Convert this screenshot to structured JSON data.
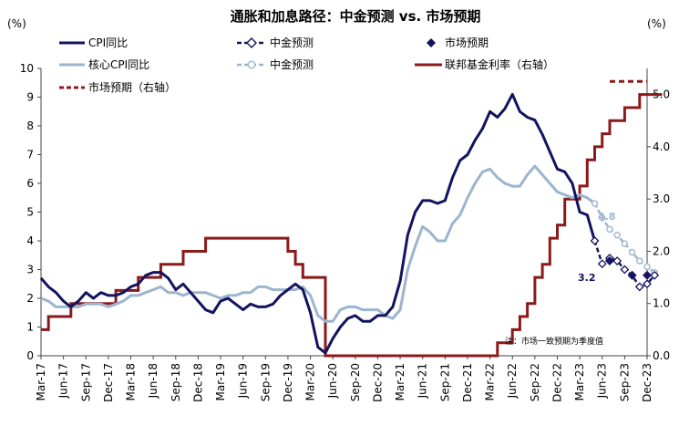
{
  "chart_data": {
    "type": "line",
    "title": "通胀和加息路径：中金预测 vs. 市场预期",
    "ylabel_left": "(%)",
    "ylabel_right": "(%)",
    "left_axis": {
      "ylim": [
        0,
        10
      ],
      "ticks": [
        "0",
        "1",
        "2",
        "3",
        "4",
        "5",
        "6",
        "7",
        "8",
        "9",
        "10"
      ]
    },
    "right_axis": {
      "ylim": [
        0.0,
        5.5
      ],
      "ticks": [
        "0.0",
        "1.0",
        "2.0",
        "3.0",
        "4.0",
        "5.0"
      ]
    },
    "x_range": [
      "2017-03",
      "2023-12"
    ],
    "x_ticks": [
      "Mar-17",
      "Jun-17",
      "Sep-17",
      "Dec-17",
      "Mar-18",
      "Jun-18",
      "Sep-18",
      "Dec-18",
      "Mar-19",
      "Jun-19",
      "Sep-19",
      "Dec-19",
      "Mar-20",
      "Jun-20",
      "Sep-20",
      "Dec-20",
      "Mar-21",
      "Jun-21",
      "Sep-21",
      "Dec-21",
      "Mar-22",
      "Jun-22",
      "Sep-22",
      "Dec-22",
      "Mar-23",
      "Jun-23",
      "Sep-23",
      "Dec-23"
    ],
    "grid": false,
    "colors": {
      "cpi": "#13135f",
      "core": "#9cb5cf",
      "fed": "#8b1a1a",
      "market_note": "#000000"
    },
    "legend": [
      {
        "label": "CPI同比",
        "style": "solid-dark-blue"
      },
      {
        "label": "中金预测",
        "style": "dashed-dark-blue-hollow-diamond"
      },
      {
        "label": "市场预期",
        "style": "dark-blue-diamond"
      },
      {
        "label": "核心CPI同比",
        "style": "solid-light-blue"
      },
      {
        "label": "中金预测",
        "style": "dashed-light-blue-hollow-circle"
      },
      {
        "label": "联邦基金利率（右轴）",
        "style": "solid-dark-red"
      },
      {
        "label": "市场预期（右轴）",
        "style": "dashed-dark-red"
      }
    ],
    "series": [
      {
        "name": "CPI同比",
        "axis": "left",
        "x_start": "2017-03",
        "values": [
          2.7,
          2.4,
          2.2,
          1.9,
          1.7,
          1.9,
          2.2,
          2.0,
          2.2,
          2.1,
          2.1,
          2.2,
          2.4,
          2.5,
          2.8,
          2.9,
          2.9,
          2.7,
          2.3,
          2.5,
          2.2,
          1.9,
          1.6,
          1.5,
          1.9,
          2.0,
          1.8,
          1.6,
          1.8,
          1.7,
          1.7,
          1.8,
          2.1,
          2.3,
          2.5,
          2.3,
          1.5,
          0.3,
          0.1,
          0.6,
          1.0,
          1.3,
          1.4,
          1.2,
          1.2,
          1.4,
          1.4,
          1.7,
          2.6,
          4.2,
          5.0,
          5.4,
          5.4,
          5.3,
          5.4,
          6.2,
          6.8,
          7.0,
          7.5,
          7.9,
          8.5,
          8.3,
          8.6,
          9.1,
          8.5,
          8.3,
          8.2,
          7.7,
          7.1,
          6.5,
          6.4,
          6.0,
          5.0,
          4.9,
          4.0
        ]
      },
      {
        "name": "中金预测",
        "axis": "left",
        "x_start": "2023-05",
        "values": [
          4.0,
          3.2,
          3.4,
          3.3,
          3.0,
          2.8,
          2.4,
          2.5,
          2.8
        ]
      },
      {
        "name": "市场预期",
        "axis": "left",
        "points": [
          [
            "2023-07",
            3.3
          ],
          [
            "2023-10",
            2.8
          ],
          [
            "2023-12",
            2.8
          ]
        ]
      },
      {
        "name": "核心CPI同比",
        "axis": "left",
        "x_start": "2017-03",
        "values": [
          2.0,
          1.9,
          1.7,
          1.7,
          1.7,
          1.7,
          1.8,
          1.8,
          1.8,
          1.7,
          1.8,
          1.9,
          2.1,
          2.1,
          2.2,
          2.3,
          2.4,
          2.2,
          2.2,
          2.1,
          2.2,
          2.2,
          2.2,
          2.1,
          2.0,
          2.1,
          2.1,
          2.2,
          2.2,
          2.4,
          2.4,
          2.3,
          2.3,
          2.3,
          2.3,
          2.4,
          2.1,
          1.4,
          1.2,
          1.2,
          1.6,
          1.7,
          1.7,
          1.6,
          1.6,
          1.6,
          1.4,
          1.3,
          1.6,
          3.0,
          3.8,
          4.5,
          4.3,
          4.0,
          4.0,
          4.6,
          4.9,
          5.5,
          6.0,
          6.4,
          6.5,
          6.2,
          6.0,
          5.9,
          5.9,
          6.3,
          6.6,
          6.3,
          6.0,
          5.7,
          5.6,
          5.5,
          5.6,
          5.5,
          5.3
        ]
      },
      {
        "name": "中金预测",
        "axis": "left",
        "x_start": "2023-05",
        "values": [
          5.3,
          4.8,
          4.4,
          4.2,
          3.9,
          3.6,
          3.3,
          3.1,
          2.9
        ]
      },
      {
        "name": "联邦基金利率（右轴）",
        "axis": "right",
        "step": true,
        "x_start": "2017-03",
        "values": [
          0.5,
          0.75,
          0.75,
          0.75,
          1.0,
          1.0,
          1.0,
          1.0,
          1.0,
          1.0,
          1.25,
          1.25,
          1.25,
          1.5,
          1.5,
          1.5,
          1.75,
          1.75,
          1.75,
          2.0,
          2.0,
          2.0,
          2.25,
          2.25,
          2.25,
          2.25,
          2.25,
          2.25,
          2.25,
          2.25,
          2.25,
          2.25,
          2.25,
          2.0,
          1.75,
          1.5,
          1.5,
          1.5,
          0.0,
          0.0,
          0.0,
          0.0,
          0.0,
          0.0,
          0.0,
          0.0,
          0.0,
          0.0,
          0.0,
          0.0,
          0.0,
          0.0,
          0.0,
          0.0,
          0.0,
          0.0,
          0.0,
          0.0,
          0.0,
          0.0,
          0.0,
          0.25,
          0.25,
          0.5,
          0.75,
          1.0,
          1.5,
          1.75,
          2.25,
          2.5,
          3.0,
          3.0,
          3.25,
          3.75,
          4.0,
          4.25,
          4.5,
          4.5,
          4.75,
          4.75,
          5.0,
          5.0,
          5.0,
          5.0
        ]
      },
      {
        "name": "市场预期（右轴）",
        "axis": "right",
        "step": true,
        "x_start": "2023-07",
        "values": [
          5.25,
          5.25,
          5.25,
          5.25,
          5.25,
          5.25
        ]
      }
    ],
    "annotations": [
      {
        "text": "3.2",
        "color": "#13135f"
      },
      {
        "text": "4.8",
        "color": "#9cb5cf"
      },
      {
        "text": "注：市场一致预期为季度值",
        "color": "#000000"
      }
    ]
  }
}
